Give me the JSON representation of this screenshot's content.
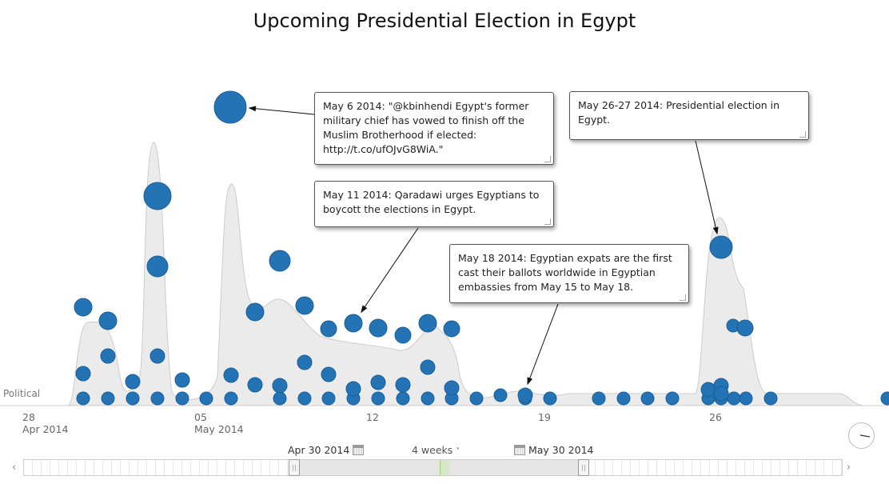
{
  "title": "Upcoming Presidential Election in Egypt",
  "band_label": "Political",
  "colors": {
    "bubble": "#2373b5",
    "density_fill": "#ebebeb",
    "density_stroke": "#cccccc"
  },
  "callouts": [
    {
      "text": "May 6 2014: \"@kbinhendi Egypt's former military chief has vowed to finish off the Muslim Brotherhood if elected: http://t.co/ufOJvG8WiA.\""
    },
    {
      "text": "May 11 2014: Qaradawi urges Egyptians to boycott the elections in Egypt."
    },
    {
      "text": "May 18 2014: Egyptian expats are the first cast their ballots worldwide in Egyptian embassies from May 15 to May 18."
    },
    {
      "text": "May 26-27 2014: Presidential election in Egypt."
    }
  ],
  "axis": {
    "ticks": [
      {
        "day": "28",
        "month": "Apr 2014"
      },
      {
        "day": "05",
        "month": "May 2014"
      },
      {
        "day": "12",
        "month": ""
      },
      {
        "day": "19",
        "month": ""
      },
      {
        "day": "26",
        "month": ""
      }
    ]
  },
  "navigator": {
    "start_date": "Apr 30 2014",
    "span": "4 weeks",
    "span_chevron": "˅",
    "end_date": "May 30 2014",
    "prev": "‹",
    "next": "›"
  }
}
